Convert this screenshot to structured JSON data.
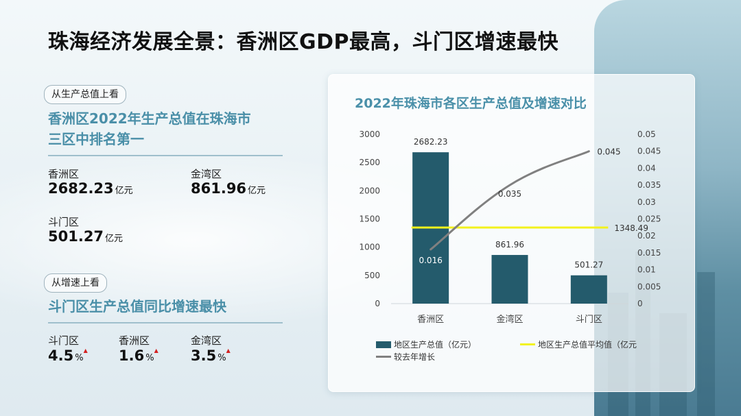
{
  "title": "珠海经济发展全景：香洲区GDP最高，斗门区增速最快",
  "left": {
    "gdp_pill": "从生产总值上看",
    "gdp_heading_line1": "香洲区2022年生产总值在珠海市",
    "gdp_heading_line2": "三区中排名第一",
    "gdp_stats": [
      {
        "district": "香洲区",
        "value": "2682.23",
        "unit": "亿元"
      },
      {
        "district": "金湾区",
        "value": "861.96",
        "unit": "亿元"
      },
      {
        "district": "斗门区",
        "value": "501.27",
        "unit": "亿元"
      }
    ],
    "growth_pill": "从增速上看",
    "growth_heading": "斗门区生产总值同比增速最快",
    "growth_stats": [
      {
        "district": "斗门区",
        "value": "4.5",
        "unit": "%"
      },
      {
        "district": "香洲区",
        "value": "1.6",
        "unit": "%"
      },
      {
        "district": "金湾区",
        "value": "3.5",
        "unit": "%"
      }
    ],
    "up_marker": "▲"
  },
  "chart_data": {
    "type": "bar",
    "title": "2022年珠海市各区生产总值及增速对比",
    "categories": [
      "香洲区",
      "金湾区",
      "斗门区"
    ],
    "series": [
      {
        "name": "地区生产总值（亿元）",
        "kind": "bar",
        "axis": "left",
        "values": [
          2682.23,
          861.96,
          501.27
        ],
        "color": "#245b6c"
      },
      {
        "name": "地区生产总值平均值（亿元",
        "kind": "line",
        "axis": "left",
        "values": [
          1348.49,
          1348.49,
          1348.49
        ],
        "color": "#f2f21c"
      },
      {
        "name": "较去年增长",
        "kind": "line",
        "axis": "right",
        "values": [
          0.016,
          0.035,
          0.045
        ],
        "color": "#808080"
      }
    ],
    "bar_labels": [
      "2682.23",
      "861.96",
      "501.27"
    ],
    "avg_label": "1348.49",
    "growth_labels": [
      "0.016",
      "0.035",
      "0.045"
    ],
    "ylim_left": [
      0,
      3000
    ],
    "yticks_left": [
      "3000",
      "2500",
      "2000",
      "1500",
      "1000",
      "500",
      "0"
    ],
    "ylim_right": [
      0,
      0.05
    ],
    "yticks_right": [
      "0.05",
      "0.045",
      "0.04",
      "0.035",
      "0.03",
      "0.025",
      "0.02",
      "0.015",
      "0.01",
      "0.005",
      "0"
    ],
    "grid": false,
    "legend": "bottom"
  }
}
